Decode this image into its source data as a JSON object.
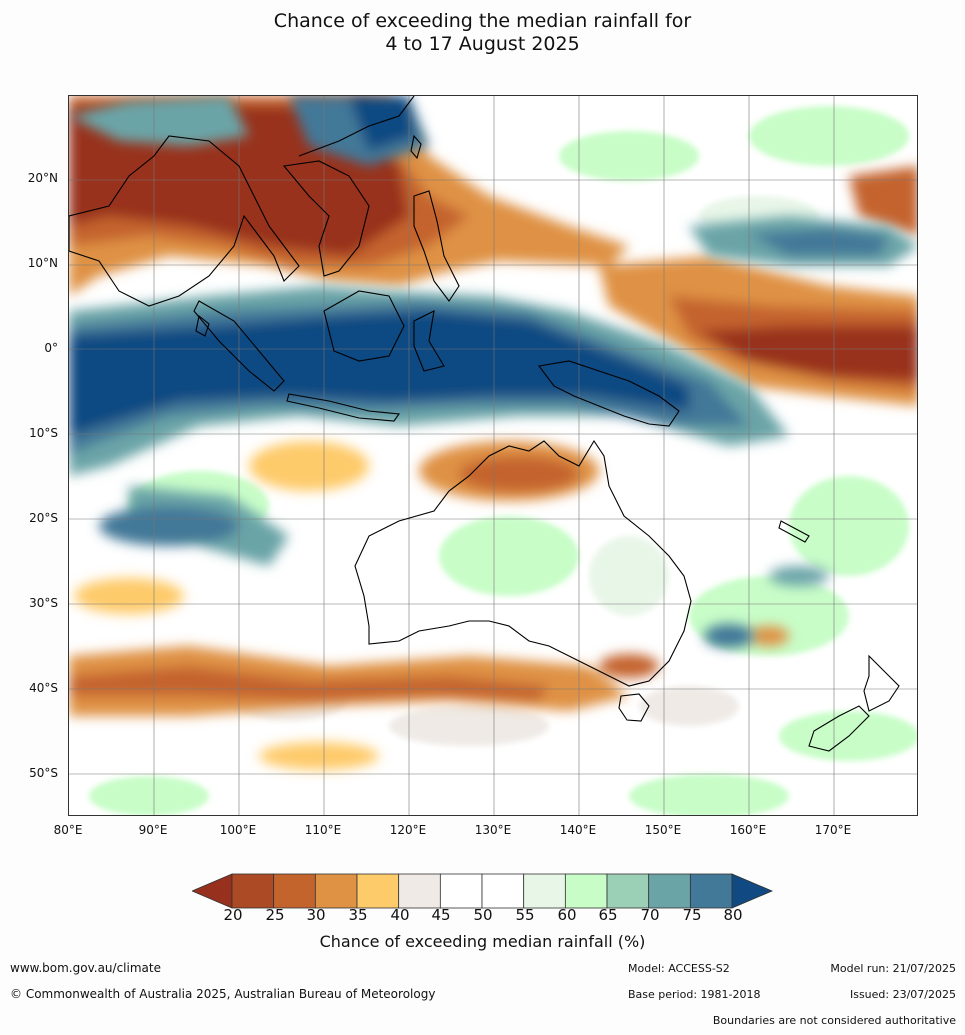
{
  "title_line1": "Chance of exceeding the median rainfall for",
  "title_line2": "4 to 17 August 2025",
  "lat_labels": [
    "20°N",
    "10°N",
    "0°",
    "10°S",
    "20°S",
    "30°S",
    "40°S",
    "50°S"
  ],
  "lon_labels": [
    "80°E",
    "90°E",
    "100°E",
    "110°E",
    "120°E",
    "130°E",
    "140°E",
    "150°E",
    "160°E",
    "170°E"
  ],
  "colorbar": {
    "ticks": [
      "20",
      "25",
      "30",
      "35",
      "40",
      "45",
      "50",
      "55",
      "60",
      "65",
      "70",
      "75",
      "80"
    ],
    "colors": [
      "#98301e",
      "#ab4a25",
      "#c4642d",
      "#df9244",
      "#fecb6a",
      "#efeae6",
      "#ffffff",
      "#ffffff",
      "#e8f6e8",
      "#c8fdc8",
      "#9cd0b6",
      "#6aa4a7",
      "#427898",
      "#114a82"
    ],
    "title": "Chance of exceeding median rainfall (%)"
  },
  "footer": {
    "url": "www.bom.gov.au/climate",
    "copyright": "© Commonwealth of Australia 2025, Australian Bureau of Meteorology",
    "model": "Model: ACCESS-S2",
    "base_period": "Base period: 1981-2018",
    "model_run": "Model run: 21/07/2025",
    "issued": "Issued: 23/07/2025",
    "disclaimer": "Boundaries are not considered authoritative"
  }
}
